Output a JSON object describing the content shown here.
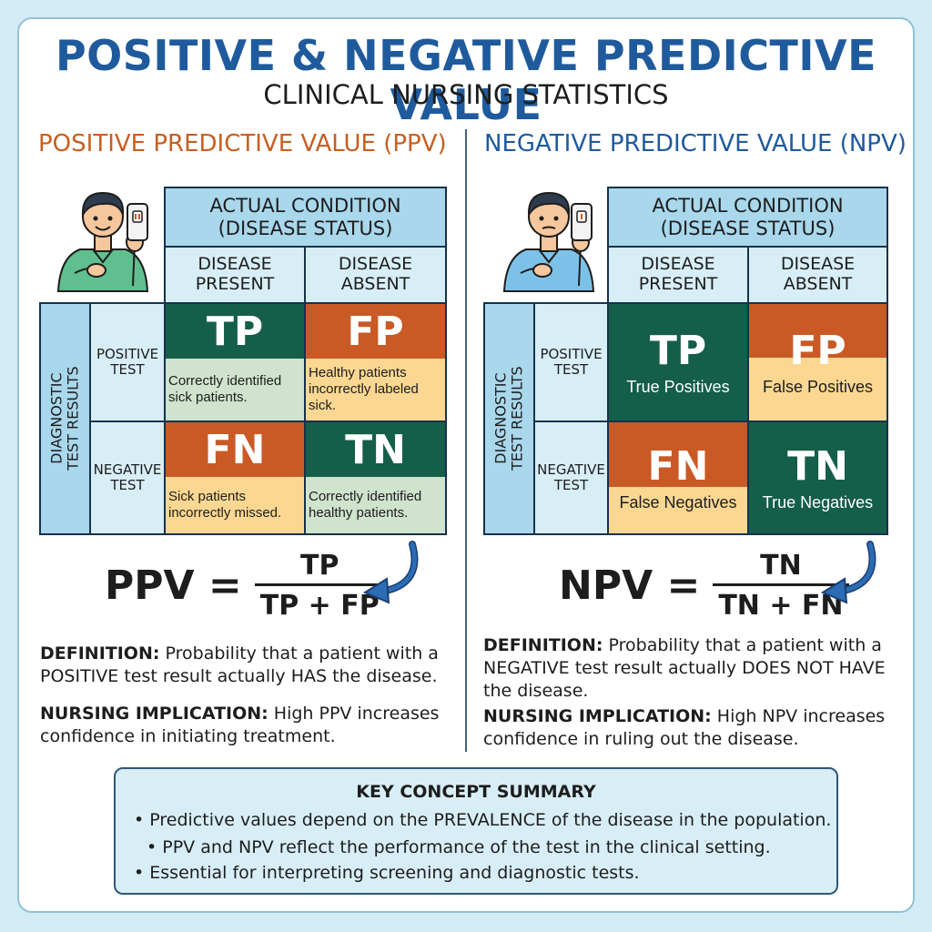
{
  "title": "POSITIVE & NEGATIVE PREDICTIVE VALUE",
  "subtitle": "CLINICAL NURSING STATISTICS",
  "ppv": {
    "heading": "POSITIVE PREDICTIVE VALUE (PPV)",
    "actual_condition": "ACTUAL CONDITION",
    "disease_status": "(DISEASE STATUS)",
    "present_l1": "DISEASE",
    "present_l2": "PRESENT",
    "absent_l1": "DISEASE",
    "absent_l2": "ABSENT",
    "side_l1": "DIAGNOSTIC",
    "side_l2": "TEST RESULTS",
    "pos_l1": "POSITIVE",
    "pos_l2": "TEST",
    "neg_l1": "NEGATIVE",
    "neg_l2": "TEST",
    "tp": "TP",
    "tp_desc": "Correctly identified sick patients.",
    "fp": "FP",
    "fp_desc": "Healthy patients incorrectly labeled sick.",
    "fn": "FN",
    "fn_desc": "Sick patients incorrectly missed.",
    "tn": "TN",
    "tn_desc": "Correctly identified healthy patients.",
    "formula_lhs": "PPV =",
    "formula_num": "TP",
    "formula_den": "TP + FP",
    "def_label": "DEFINITION:",
    "def_text": " Probability that a patient with a POSITIVE test result actually HAS the disease.",
    "impl_label": "NURSING IMPLICATION:",
    "impl_text": " High PPV increases confidence in initiating treatment."
  },
  "npv": {
    "heading": "NEGATIVE PREDICTIVE VALUE (NPV)",
    "actual_condition": "ACTUAL CONDITION",
    "disease_status": "(DISEASE STATUS)",
    "present_l1": "DISEASE",
    "present_l2": "PRESENT",
    "absent_l1": "DISEASE",
    "absent_l2": "ABSENT",
    "side_l1": "DIAGNOSTIC",
    "side_l2": "TEST RESULTS",
    "pos_l1": "POSITIVE",
    "pos_l2": "TEST",
    "neg_l1": "NEGATIVE",
    "neg_l2": "TEST",
    "tp": "TP",
    "tp_desc": "True Positives",
    "fp": "FP",
    "fp_desc": "False Positives",
    "fn": "FN",
    "fn_desc": "False Negatives",
    "tn": "TN",
    "tn_desc": "True Negatives",
    "formula_lhs": "NPV =",
    "formula_num": "TN",
    "formula_den": "TN + FN",
    "def_label": "DEFINITION:",
    "def_text": " Probability that a patient with a NEGATIVE test result actually DOES NOT HAVE the disease.",
    "impl_label": "NURSING IMPLICATION:",
    "impl_text": " High NPV increases confidence in ruling out the disease."
  },
  "summary": {
    "title": "KEY CONCEPT SUMMARY",
    "items": [
      "Predictive values depend on the PREVALENCE of the disease in the population.",
      "PPV and NPV reflect the performance of the test in the clinical setting.",
      "Essential for interpreting screening and diagnostic tests."
    ]
  },
  "colors": {
    "title_blue": "#1f5a9d",
    "ppv_orange": "#c65f21",
    "green": "#155e4a",
    "orange": "#c95a25",
    "light_green": "#cfe3cd",
    "light_yellow": "#fbd792",
    "header_blue": "#a9d7ec",
    "header_light": "#d8eef7",
    "arrow_blue": "#2b6cb4"
  },
  "icons": [
    "nurse-person-icon",
    "test-device-icon",
    "curved-arrow-icon",
    "bullet-icon"
  ]
}
